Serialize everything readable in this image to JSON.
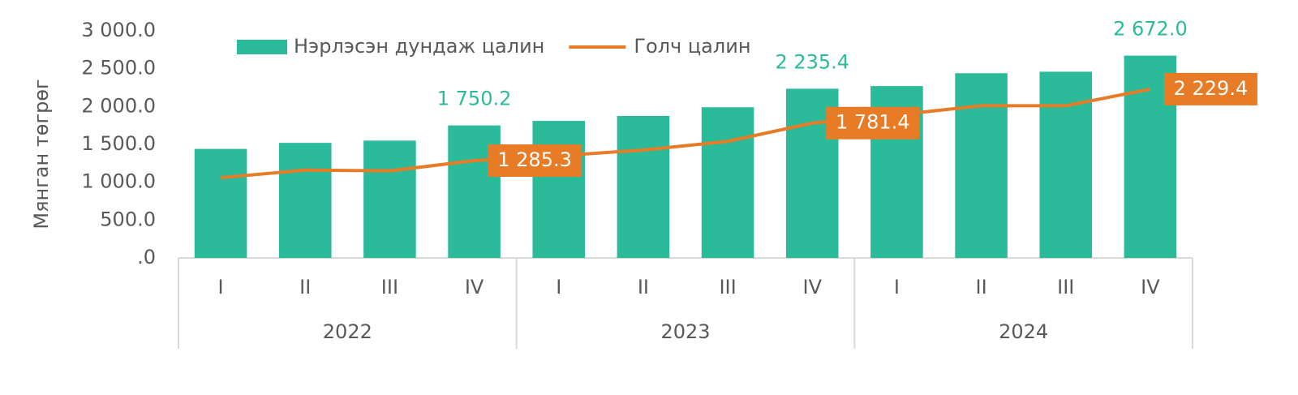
{
  "chart_data": {
    "type": "bar-line",
    "y_label": "Мянган төгрөг",
    "categories": [
      "I",
      "II",
      "III",
      "IV",
      "I",
      "II",
      "III",
      "IV",
      "I",
      "II",
      "III",
      "IV"
    ],
    "category_groups": [
      "2022",
      "2023",
      "2024"
    ],
    "series": [
      {
        "name": "Нэрлэсэн дундаж цалин",
        "type": "bar",
        "color": "#2bbb9b",
        "values": [
          1440,
          1520,
          1550,
          1750.2,
          1810,
          1875,
          1990,
          2235.4,
          2270,
          2440,
          2460,
          2672.0
        ],
        "value_labels": [
          null,
          null,
          null,
          "1 750.2",
          null,
          null,
          null,
          "2 235.4",
          null,
          null,
          null,
          "2 672.0"
        ]
      },
      {
        "name": "Голч цалин",
        "type": "line",
        "color": "#e87b26",
        "values": [
          1060,
          1160,
          1150,
          1285.3,
          1350,
          1425,
          1540,
          1781.4,
          1890,
          2010,
          2010,
          2229.4
        ],
        "value_labels": [
          null,
          null,
          null,
          "1 285.3",
          null,
          null,
          null,
          "1 781.4",
          null,
          null,
          null,
          "2 229.4"
        ]
      }
    ],
    "ylim": [
      0,
      3000
    ],
    "yticks": [
      {
        "value": 0,
        "label": ".0"
      },
      {
        "value": 500,
        "label": "500.0"
      },
      {
        "value": 1000,
        "label": "1 000.0"
      },
      {
        "value": 1500,
        "label": "1 500.0"
      },
      {
        "value": 2000,
        "label": "2 000.0"
      },
      {
        "value": 2500,
        "label": "2 500.0"
      },
      {
        "value": 3000,
        "label": "3 000.0"
      }
    ],
    "grid": false,
    "legend": "top"
  }
}
